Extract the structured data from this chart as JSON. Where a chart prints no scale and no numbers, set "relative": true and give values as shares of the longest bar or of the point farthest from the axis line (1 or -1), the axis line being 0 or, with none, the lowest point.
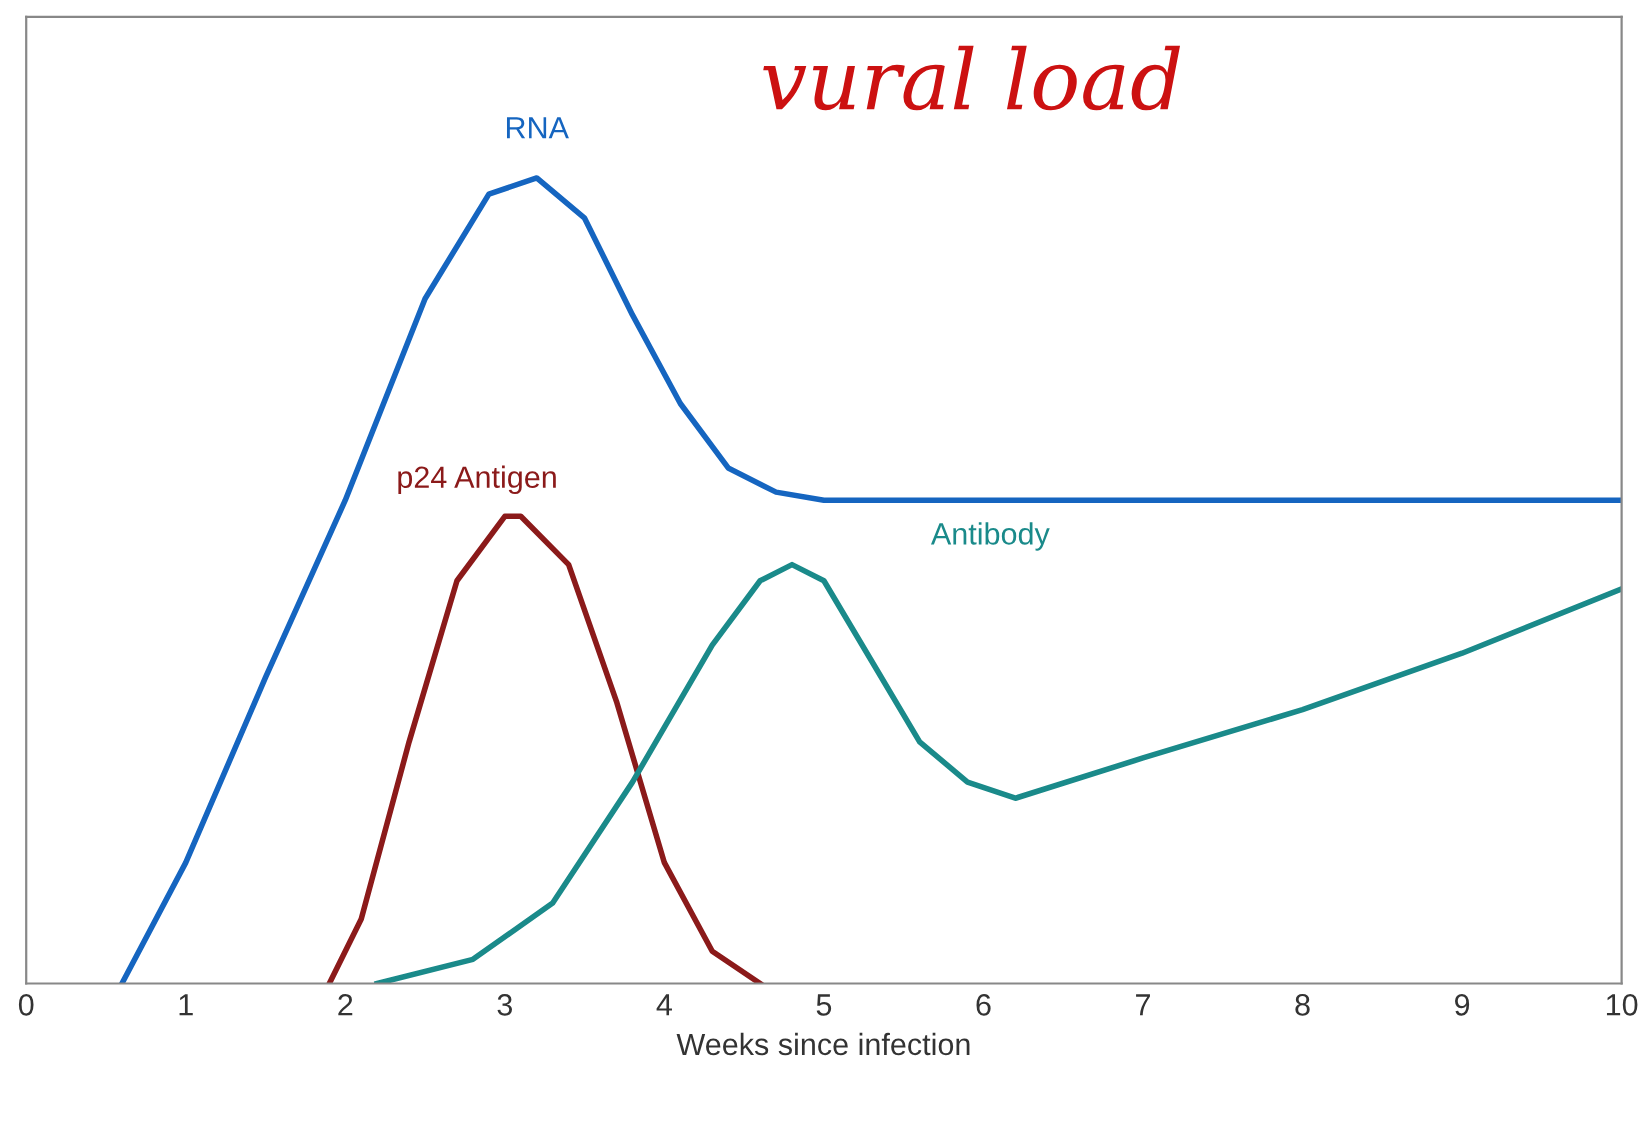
{
  "chart_data": {
    "type": "line",
    "xlabel": "Weeks since infection",
    "relative": true,
    "xlim": [
      0,
      10
    ],
    "xticks": [
      0,
      1,
      2,
      3,
      4,
      5,
      6,
      7,
      8,
      9,
      10
    ],
    "grid": false,
    "legend": false,
    "marker": "none",
    "line_style": "solid",
    "annotations": [
      "vural load"
    ],
    "series": [
      {
        "name": "RNA",
        "color": "#1565c0",
        "x": [
          0.6,
          1,
          1.5,
          2,
          2.5,
          2.9,
          3.2,
          3.5,
          3.8,
          4.1,
          4.4,
          4.7,
          5,
          10
        ],
        "values": [
          0,
          0.15,
          0.38,
          0.6,
          0.85,
          0.98,
          1.0,
          0.95,
          0.83,
          0.72,
          0.64,
          0.61,
          0.6,
          0.6
        ]
      },
      {
        "name": "p24 Antigen",
        "color": "#8b1a1a",
        "x": [
          1.9,
          2.1,
          2.4,
          2.7,
          3.0,
          3.1,
          3.4,
          3.7,
          4.0,
          4.3,
          4.6
        ],
        "values": [
          0,
          0.08,
          0.3,
          0.5,
          0.58,
          0.58,
          0.52,
          0.35,
          0.15,
          0.04,
          0
        ]
      },
      {
        "name": "Antibody",
        "color": "#1a8a8a",
        "x": [
          2.2,
          2.8,
          3.3,
          3.8,
          4.3,
          4.6,
          4.8,
          5.0,
          5.3,
          5.6,
          5.9,
          6.2,
          7,
          8,
          9,
          10
        ],
        "values": [
          0,
          0.03,
          0.1,
          0.25,
          0.42,
          0.5,
          0.52,
          0.5,
          0.4,
          0.3,
          0.25,
          0.23,
          0.28,
          0.34,
          0.41,
          0.49
        ]
      }
    ]
  }
}
